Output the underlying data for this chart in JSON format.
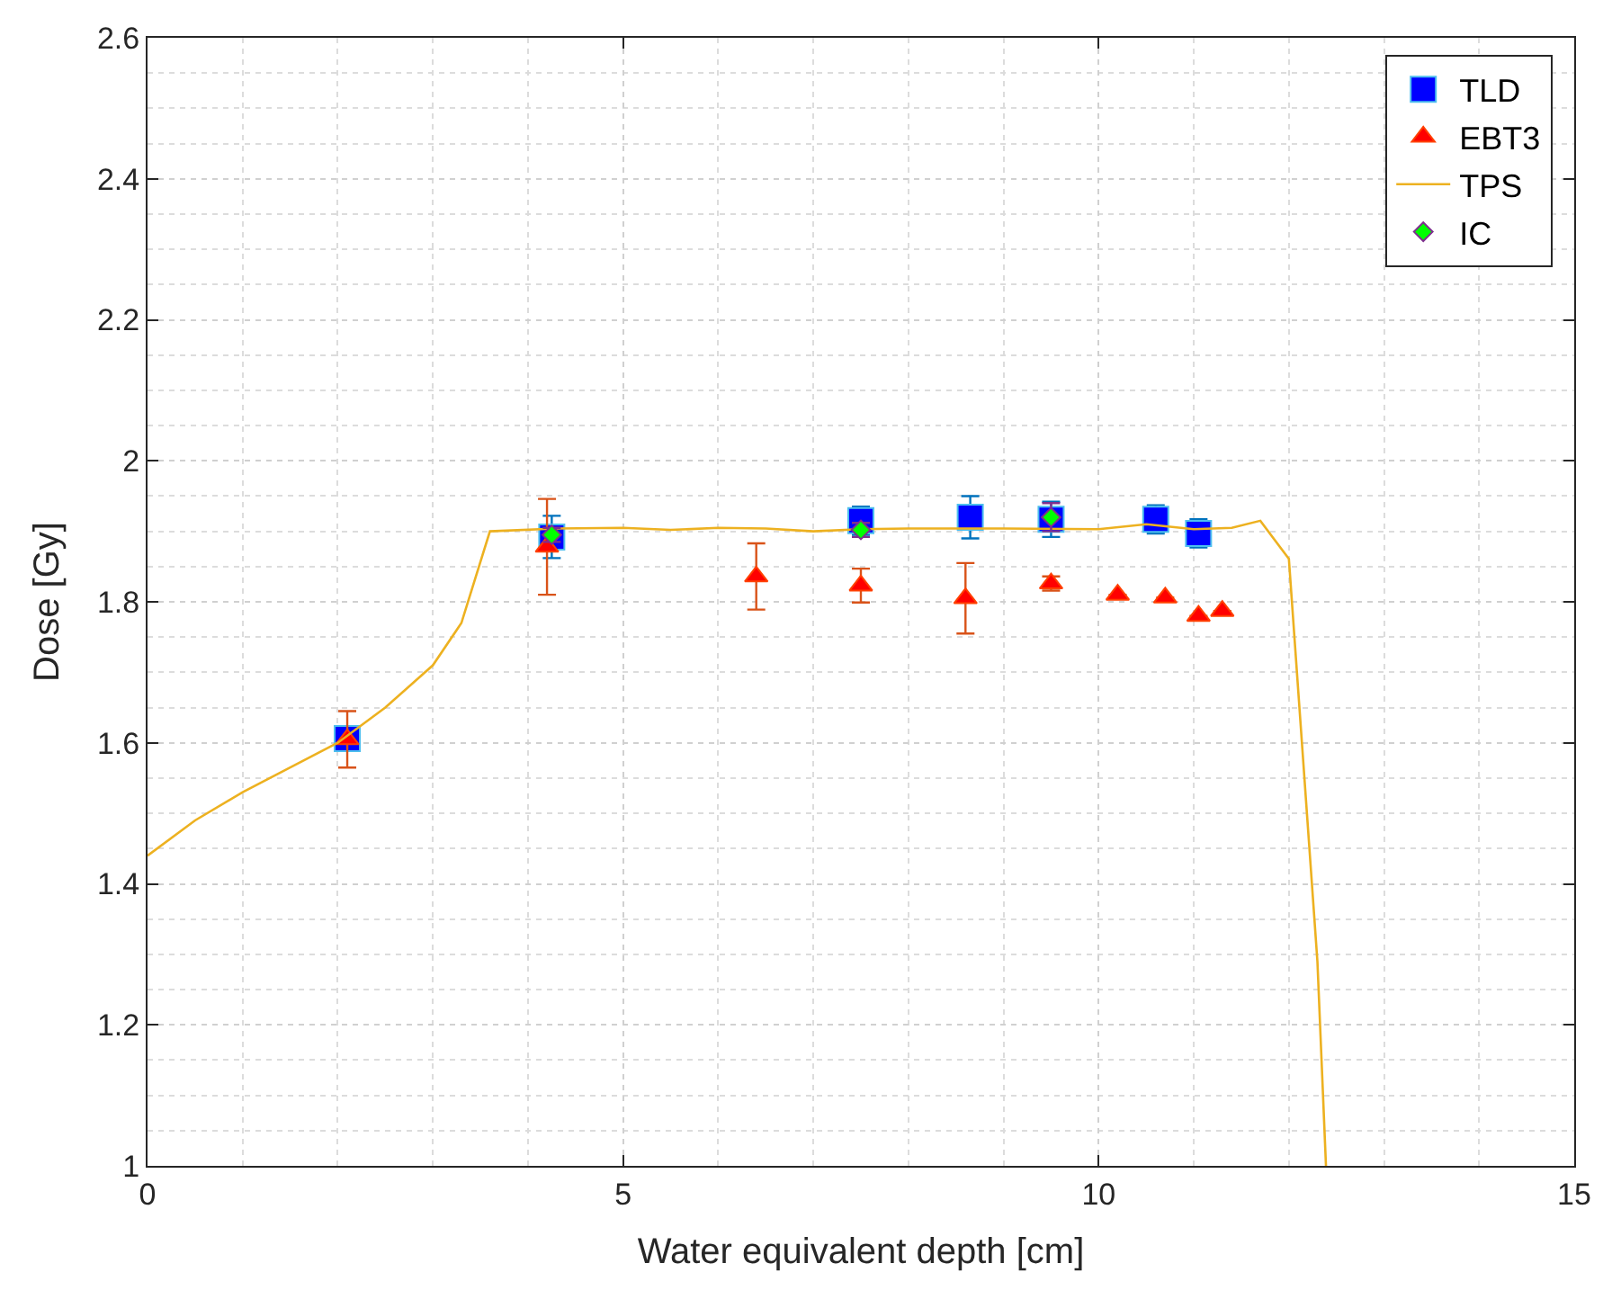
{
  "chart_data": {
    "type": "scatter",
    "xlabel": "Water equivalent depth [cm]",
    "ylabel": "Dose [Gy]",
    "xlim": [
      0,
      15
    ],
    "xticks": [
      0,
      5,
      10,
      15
    ],
    "ylim": [
      1,
      2.6
    ],
    "yticks": [
      1,
      1.2,
      1.4,
      1.6,
      1.8,
      2,
      2.2,
      2.4,
      2.6
    ],
    "grid": true,
    "legend": "top right",
    "series": [
      {
        "name": "TLD",
        "marker": "square",
        "color": "#0000ff",
        "x": [
          2.1,
          4.25,
          7.5,
          8.65,
          9.5,
          10.6,
          11.05
        ],
        "values": [
          1.606,
          1.892,
          1.915,
          1.92,
          1.917,
          1.917,
          1.897
        ],
        "errors": [
          null,
          0.03,
          0.02,
          0.03,
          0.025,
          0.02,
          0.02
        ]
      },
      {
        "name": "EBT3",
        "marker": "triangle",
        "color": "#ff0000",
        "x": [
          2.1,
          4.2,
          6.4,
          7.5,
          8.6,
          9.5,
          10.2,
          10.7,
          11.05,
          11.3
        ],
        "values": [
          1.605,
          1.878,
          1.836,
          1.823,
          1.805,
          1.826,
          1.81,
          1.806,
          1.78,
          1.787
        ],
        "errors": [
          0.04,
          0.068,
          0.047,
          0.024,
          0.05,
          0.01,
          null,
          null,
          null,
          null
        ]
      },
      {
        "name": "TPS",
        "type": "line",
        "color": "#edb120",
        "x": [
          0,
          0.5,
          1,
          1.5,
          2,
          2.5,
          3,
          3.3,
          3.6,
          4.3,
          5,
          5.5,
          6,
          6.5,
          7,
          7.5,
          8,
          9,
          10,
          10.5,
          11,
          11.4,
          11.7,
          12,
          12.3,
          12.39
        ],
        "values": [
          1.44,
          1.49,
          1.53,
          1.565,
          1.6,
          1.65,
          1.71,
          1.77,
          1.9,
          1.904,
          1.905,
          1.902,
          1.905,
          1.904,
          1.9,
          1.903,
          1.904,
          1.904,
          1.903,
          1.91,
          1.903,
          1.905,
          1.915,
          1.861,
          1.29,
          1.0
        ]
      },
      {
        "name": "IC",
        "marker": "diamond",
        "color": "#00ff00",
        "x": [
          4.25,
          7.5,
          9.5
        ],
        "values": [
          1.895,
          1.902,
          1.92
        ],
        "errors": [
          0.01,
          0.01,
          0.02
        ]
      }
    ]
  }
}
